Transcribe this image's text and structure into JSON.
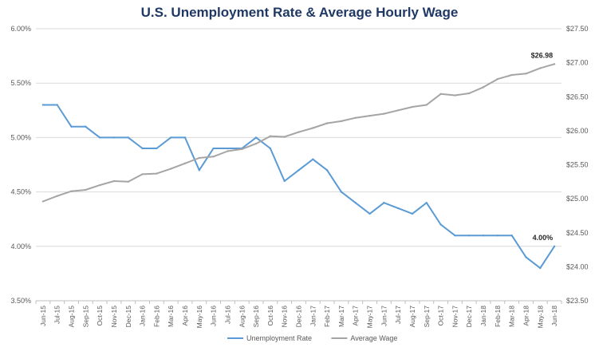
{
  "chart_data": {
    "type": "line",
    "title": "U.S. Unemployment Rate & Average Hourly Wage",
    "xlabel": "",
    "ylabel": "",
    "categories": [
      "Jun-15",
      "Jul-15",
      "Aug-15",
      "Sep-15",
      "Oct-15",
      "Nov-15",
      "Dec-15",
      "Jan-16",
      "Feb-16",
      "Mar-16",
      "Apr-16",
      "May-16",
      "Jun-16",
      "Jul-16",
      "Aug-16",
      "Sep-16",
      "Oct-16",
      "Nov-16",
      "Dec-16",
      "Jan-17",
      "Feb-17",
      "Mar-17",
      "Apr-17",
      "May-17",
      "Jun-17",
      "Jul-17",
      "Aug-17",
      "Sep-17",
      "Oct-17",
      "Nov-17",
      "Dec-17",
      "Jan-18",
      "Feb-18",
      "Mar-18",
      "Apr-18",
      "May-18",
      "Jun-18"
    ],
    "y_left": {
      "ylim": [
        3.5,
        6.0
      ],
      "ticks": [
        "3.50%",
        "4.00%",
        "4.50%",
        "5.00%",
        "5.50%",
        "6.00%"
      ],
      "tick_values": [
        3.5,
        4.0,
        4.5,
        5.0,
        5.5,
        6.0
      ]
    },
    "y_right": {
      "ylim": [
        23.5,
        27.5
      ],
      "ticks": [
        "$23.50",
        "$24.00",
        "$24.50",
        "$25.00",
        "$25.50",
        "$26.00",
        "$26.50",
        "$27.00",
        "$27.50"
      ],
      "tick_values": [
        23.5,
        24.0,
        24.5,
        25.0,
        25.5,
        26.0,
        26.5,
        27.0,
        27.5
      ]
    },
    "series": [
      {
        "name": "Unemployment Rate",
        "axis": "left",
        "color": "#5b9bd5",
        "values": [
          5.3,
          5.3,
          5.1,
          5.1,
          5.0,
          5.0,
          5.0,
          4.9,
          4.9,
          5.0,
          5.0,
          4.7,
          4.9,
          4.9,
          4.9,
          5.0,
          4.9,
          4.6,
          4.7,
          4.8,
          4.7,
          4.5,
          4.4,
          4.3,
          4.4,
          4.35,
          4.3,
          4.4,
          4.2,
          4.1,
          4.1,
          4.1,
          4.1,
          4.1,
          3.9,
          3.8,
          4.0
        ],
        "end_label": "4.00%"
      },
      {
        "name": "Average Wage",
        "axis": "right",
        "color": "#a5a5a5",
        "values": [
          24.96,
          25.04,
          25.11,
          25.13,
          25.2,
          25.26,
          25.25,
          25.36,
          25.37,
          25.44,
          25.52,
          25.6,
          25.62,
          25.7,
          25.73,
          25.81,
          25.92,
          25.91,
          25.98,
          26.04,
          26.11,
          26.14,
          26.19,
          26.22,
          26.25,
          26.3,
          26.35,
          26.38,
          26.54,
          26.52,
          26.55,
          26.64,
          26.76,
          26.82,
          26.84,
          26.92,
          26.98
        ],
        "end_label": "$26.98"
      }
    ],
    "grid": true,
    "legend": "bottom"
  }
}
